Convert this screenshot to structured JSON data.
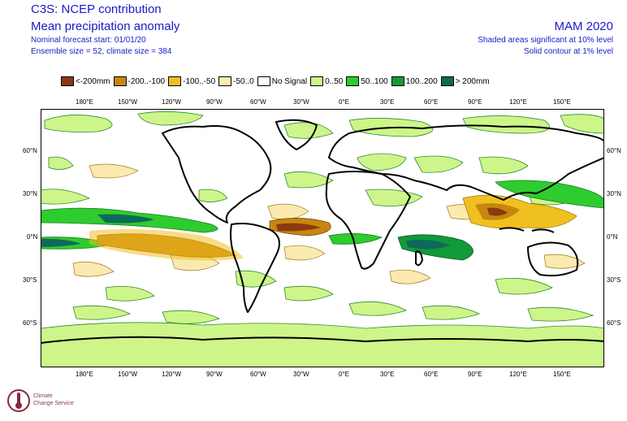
{
  "header": {
    "title_line1": "C3S: NCEP contribution",
    "title_line2": "Mean precipitation anomaly",
    "forecast_start": "Nominal forecast start: 01/01/20",
    "ensemble": "Ensemble size = 52, climate size = 384",
    "season": "MAM 2020",
    "significance_shaded": "Shaded areas significant at 10% level",
    "significance_contour": "Solid contour at 1% level"
  },
  "legend": [
    {
      "label": "<-200mm",
      "color": "#8b3a0f"
    },
    {
      "label": "-200..-100",
      "color": "#c8860e"
    },
    {
      "label": "-100..-50",
      "color": "#f0c020"
    },
    {
      "label": "-50..0",
      "color": "#faeab0"
    },
    {
      "label": "No Signal",
      "color": "#ffffff"
    },
    {
      "label": "0..50",
      "color": "#cdf58a"
    },
    {
      "label": "50..100",
      "color": "#2ecc2e"
    },
    {
      "label": "100..200",
      "color": "#129a3a"
    },
    {
      "label": "> 200mm",
      "color": "#0d6a5a"
    }
  ],
  "axes": {
    "lon_labels": [
      "180°E",
      "150°W",
      "120°W",
      "90°W",
      "60°W",
      "30°W",
      "0°E",
      "30°E",
      "60°E",
      "90°E",
      "120°E",
      "150°E"
    ],
    "lat_labels": [
      "60°N",
      "30°N",
      "0°N",
      "30°S",
      "60°S"
    ]
  },
  "logo": {
    "text_line1": "Climate",
    "text_line2": "Change Service"
  }
}
